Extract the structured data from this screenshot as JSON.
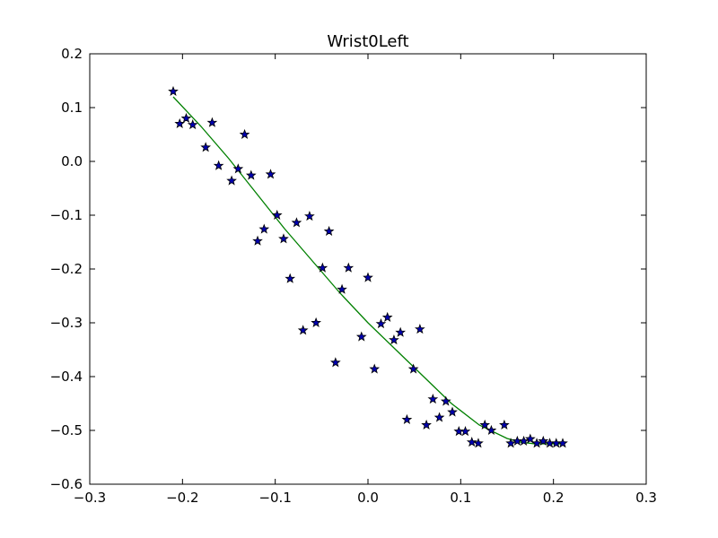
{
  "chart_data": {
    "type": "scatter",
    "title": "Wrist0Left",
    "xlabel": "",
    "ylabel": "",
    "xlim": [
      -0.3,
      0.3
    ],
    "ylim": [
      -0.6,
      0.2
    ],
    "grid": false,
    "x_ticks": [
      -0.3,
      -0.2,
      -0.1,
      0.0,
      0.1,
      0.2,
      0.3
    ],
    "x_tick_labels": [
      "−0.3",
      "−0.2",
      "−0.1",
      "0.0",
      "0.1",
      "0.2",
      "0.3"
    ],
    "y_ticks": [
      0.2,
      0.1,
      0.0,
      -0.1,
      -0.2,
      -0.3,
      -0.4,
      -0.5,
      -0.6
    ],
    "y_tick_labels": [
      "0.2",
      "0.1",
      "0.0",
      "−0.1",
      "−0.2",
      "−0.3",
      "−0.4",
      "−0.5",
      "−0.6"
    ],
    "series": [
      {
        "kind": "scatter",
        "marker": "star",
        "color": "#0000b0",
        "points": [
          [
            -0.21,
            0.13
          ],
          [
            -0.203,
            0.07
          ],
          [
            -0.196,
            0.08
          ],
          [
            -0.189,
            0.068
          ],
          [
            -0.175,
            0.026
          ],
          [
            -0.168,
            0.072
          ],
          [
            -0.161,
            -0.008
          ],
          [
            -0.147,
            -0.036
          ],
          [
            -0.14,
            -0.014
          ],
          [
            -0.133,
            0.05
          ],
          [
            -0.126,
            -0.026
          ],
          [
            -0.119,
            -0.148
          ],
          [
            -0.112,
            -0.126
          ],
          [
            -0.105,
            -0.024
          ],
          [
            -0.098,
            -0.1
          ],
          [
            -0.091,
            -0.144
          ],
          [
            -0.084,
            -0.218
          ],
          [
            -0.077,
            -0.114
          ],
          [
            -0.07,
            -0.314
          ],
          [
            -0.063,
            -0.102
          ],
          [
            -0.056,
            -0.3
          ],
          [
            -0.049,
            -0.198
          ],
          [
            -0.042,
            -0.13
          ],
          [
            -0.035,
            -0.374
          ],
          [
            -0.028,
            -0.238
          ],
          [
            -0.021,
            -0.198
          ],
          [
            -0.007,
            -0.326
          ],
          [
            0.0,
            -0.216
          ],
          [
            0.007,
            -0.386
          ],
          [
            0.014,
            -0.302
          ],
          [
            0.021,
            -0.29
          ],
          [
            0.028,
            -0.332
          ],
          [
            0.035,
            -0.318
          ],
          [
            0.042,
            -0.48
          ],
          [
            0.049,
            -0.386
          ],
          [
            0.056,
            -0.312
          ],
          [
            0.063,
            -0.49
          ],
          [
            0.07,
            -0.442
          ],
          [
            0.077,
            -0.476
          ],
          [
            0.084,
            -0.446
          ],
          [
            0.091,
            -0.466
          ],
          [
            0.098,
            -0.502
          ],
          [
            0.105,
            -0.502
          ],
          [
            0.112,
            -0.522
          ],
          [
            0.119,
            -0.524
          ],
          [
            0.126,
            -0.49
          ],
          [
            0.133,
            -0.5
          ],
          [
            0.147,
            -0.49
          ],
          [
            0.154,
            -0.524
          ],
          [
            0.161,
            -0.52
          ],
          [
            0.168,
            -0.52
          ],
          [
            0.175,
            -0.516
          ],
          [
            0.182,
            -0.524
          ],
          [
            0.189,
            -0.52
          ],
          [
            0.196,
            -0.524
          ],
          [
            0.203,
            -0.524
          ],
          [
            0.21,
            -0.524
          ]
        ]
      },
      {
        "kind": "line",
        "color": "#008000",
        "points": [
          [
            -0.21,
            0.12
          ],
          [
            -0.18,
            0.065
          ],
          [
            -0.15,
            0.005
          ],
          [
            -0.12,
            -0.06
          ],
          [
            -0.09,
            -0.125
          ],
          [
            -0.06,
            -0.185
          ],
          [
            -0.03,
            -0.245
          ],
          [
            0.0,
            -0.3
          ],
          [
            0.03,
            -0.35
          ],
          [
            0.06,
            -0.4
          ],
          [
            0.09,
            -0.45
          ],
          [
            0.12,
            -0.49
          ],
          [
            0.15,
            -0.515
          ],
          [
            0.165,
            -0.522
          ],
          [
            0.18,
            -0.525
          ],
          [
            0.21,
            -0.525
          ]
        ]
      }
    ]
  }
}
